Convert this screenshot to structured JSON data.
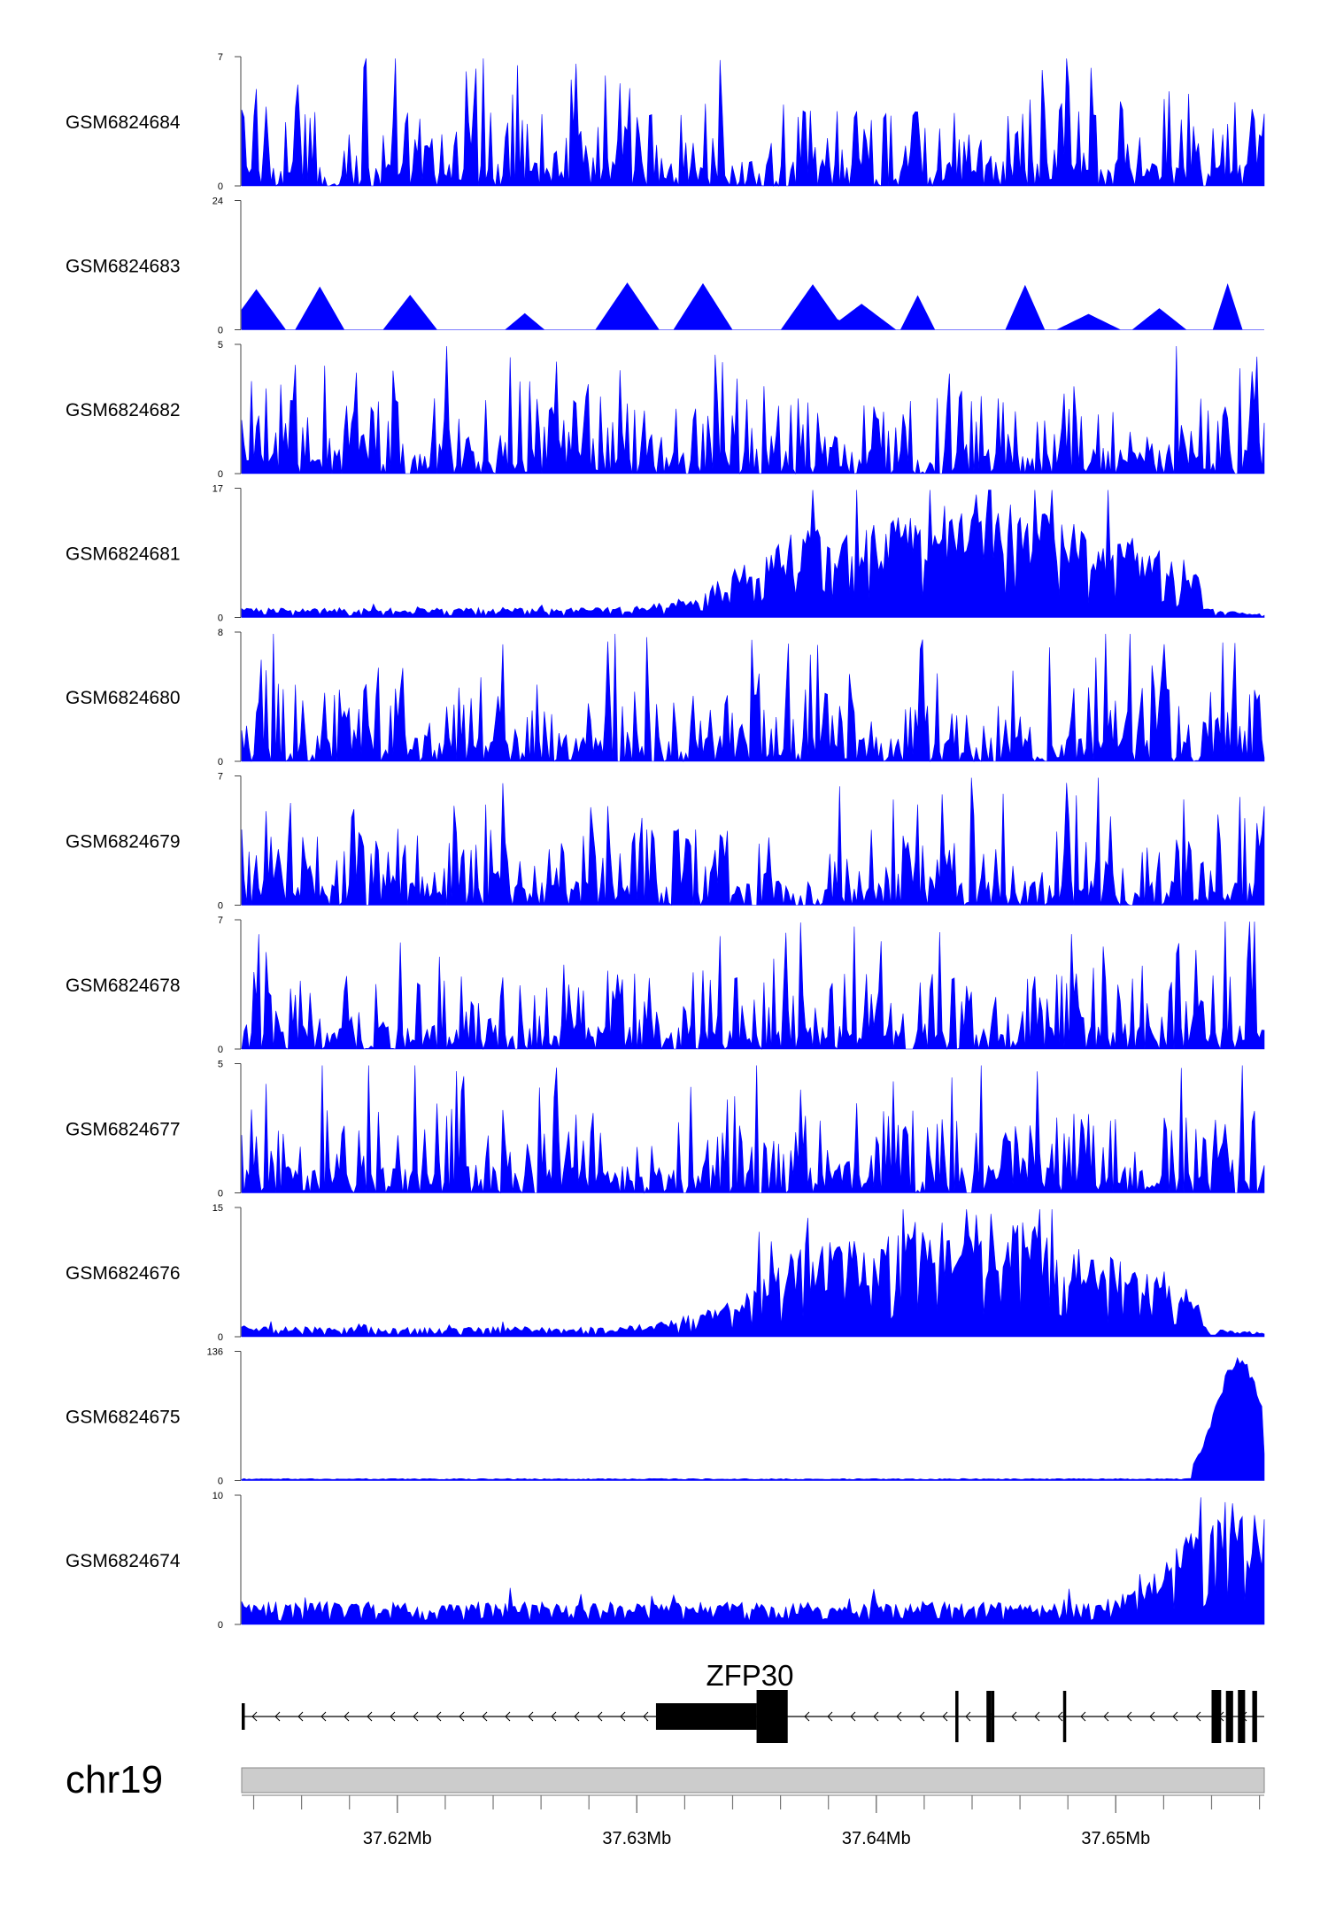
{
  "chart_data": {
    "type": "area",
    "chromosome": "chr19",
    "x_range": [
      37.6135,
      37.6562
    ],
    "x_unit": "Mb",
    "x_ticks": [
      {
        "value": 37.62,
        "label": "37.62Mb"
      },
      {
        "value": 37.63,
        "label": "37.63Mb"
      },
      {
        "value": 37.64,
        "label": "37.64Mb"
      },
      {
        "value": 37.65,
        "label": "37.65Mb"
      }
    ],
    "track_color": "#0000ff",
    "tracks": [
      {
        "name": "GSM6824684",
        "ymax": 7,
        "ymin_label": "0",
        "ymax_label": "7",
        "profile": "spiky"
      },
      {
        "name": "GSM6824683",
        "ymax": 24,
        "ymin_label": "0",
        "ymax_label": "24",
        "profile": "sparse"
      },
      {
        "name": "GSM6824682",
        "ymax": 5,
        "ymin_label": "0",
        "ymax_label": "5",
        "profile": "spiky"
      },
      {
        "name": "GSM6824681",
        "ymax": 17,
        "ymin_label": "0",
        "ymax_label": "17",
        "profile": "gene-body"
      },
      {
        "name": "GSM6824680",
        "ymax": 8,
        "ymin_label": "0",
        "ymax_label": "8",
        "profile": "spiky"
      },
      {
        "name": "GSM6824679",
        "ymax": 7,
        "ymin_label": "0",
        "ymax_label": "7",
        "profile": "spiky"
      },
      {
        "name": "GSM6824678",
        "ymax": 7,
        "ymin_label": "0",
        "ymax_label": "7",
        "profile": "spiky"
      },
      {
        "name": "GSM6824677",
        "ymax": 5,
        "ymin_label": "0",
        "ymax_label": "5",
        "profile": "dense"
      },
      {
        "name": "GSM6824676",
        "ymax": 15,
        "ymin_label": "0",
        "ymax_label": "15",
        "profile": "gene-body"
      },
      {
        "name": "GSM6824675",
        "ymax": 136,
        "ymin_label": "0",
        "ymax_label": "136",
        "profile": "promoter-peak"
      },
      {
        "name": "GSM6824674",
        "ymax": 10,
        "ymin_label": "0",
        "ymax_label": "10",
        "profile": "promoter-rise"
      }
    ],
    "gene": {
      "name": "ZFP30",
      "strand": "-",
      "start": 37.6135,
      "end": 37.6562,
      "exons": [
        {
          "start": 37.6135,
          "end": 37.6136,
          "type": "utr"
        },
        {
          "start": 37.6308,
          "end": 37.635,
          "type": "utr"
        },
        {
          "start": 37.635,
          "end": 37.6363,
          "type": "cds"
        },
        {
          "start": 37.6433,
          "end": 37.6434,
          "type": "cds"
        },
        {
          "start": 37.6446,
          "end": 37.6448,
          "type": "cds"
        },
        {
          "start": 37.6448,
          "end": 37.6449,
          "type": "cds"
        },
        {
          "start": 37.6478,
          "end": 37.6479,
          "type": "cds"
        },
        {
          "start": 37.654,
          "end": 37.6544,
          "type": "cds"
        },
        {
          "start": 37.6546,
          "end": 37.6549,
          "type": "cds"
        },
        {
          "start": 37.6551,
          "end": 37.6554,
          "type": "cds"
        },
        {
          "start": 37.6557,
          "end": 37.6559,
          "type": "cds"
        }
      ]
    }
  }
}
